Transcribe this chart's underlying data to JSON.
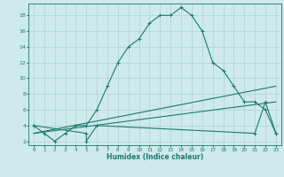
{
  "xlabel": "Humidex (Indice chaleur)",
  "ylabel": "",
  "bg_color": "#ceeaea",
  "grid_color": "#add4d4",
  "line_color": "#1a7a6e",
  "xlim": [
    -0.5,
    23.5
  ],
  "ylim": [
    1.5,
    19.5
  ],
  "xticks": [
    0,
    1,
    2,
    3,
    4,
    5,
    6,
    7,
    8,
    9,
    10,
    11,
    12,
    13,
    14,
    15,
    16,
    17,
    18,
    19,
    20,
    21,
    22,
    23
  ],
  "yticks": [
    2,
    4,
    6,
    8,
    10,
    12,
    14,
    16,
    18
  ],
  "curve1_x": [
    0,
    1,
    2,
    3,
    4,
    5,
    6,
    7,
    8,
    9,
    10,
    11,
    12,
    13,
    14,
    15,
    16,
    17,
    18,
    19,
    20,
    21,
    22,
    23
  ],
  "curve1_y": [
    4,
    3,
    2,
    3,
    4,
    4,
    6,
    9,
    12,
    14,
    15,
    17,
    18,
    18,
    19,
    18,
    16,
    12,
    11,
    9,
    7,
    7,
    6,
    3
  ],
  "curve2_x": [
    0,
    5,
    5,
    6,
    21,
    22,
    23
  ],
  "curve2_y": [
    4,
    3,
    2,
    4,
    3,
    7,
    3
  ],
  "curve3_x": [
    0,
    23
  ],
  "curve3_y": [
    3,
    9
  ],
  "curve4_x": [
    0,
    23
  ],
  "curve4_y": [
    3,
    7
  ]
}
